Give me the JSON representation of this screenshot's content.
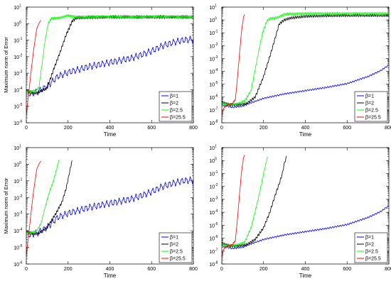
{
  "chart_data": [
    {
      "type": "line",
      "panel": "top-left",
      "xlabel": "Time",
      "ylabel": "Maximum norm of Error",
      "xlim": [
        0,
        800
      ],
      "ylim_log10": [
        -6,
        1
      ],
      "yscale": "log",
      "xticks": [
        0,
        200,
        400,
        600,
        800
      ],
      "yticks_exp": [
        -6,
        -5,
        -4,
        -3,
        -2,
        -1,
        0,
        1
      ],
      "legend_position": "bottom-right",
      "series": [
        {
          "name": "β=1",
          "color": "#0000ff",
          "osc_amp": 0.16,
          "osc_period": 20,
          "points": [
            [
              0,
              -4.1
            ],
            [
              15,
              -4.25
            ],
            [
              30,
              -4.2
            ],
            [
              50,
              -4.15
            ],
            [
              100,
              -3.8
            ],
            [
              150,
              -3.2
            ],
            [
              200,
              -2.95
            ],
            [
              300,
              -2.6
            ],
            [
              400,
              -2.35
            ],
            [
              500,
              -2.1
            ],
            [
              560,
              -1.85
            ],
            [
              610,
              -1.6
            ],
            [
              650,
              -1.35
            ],
            [
              700,
              -1.15
            ],
            [
              750,
              -1.0
            ],
            [
              790,
              -0.95
            ],
            [
              800,
              -0.95
            ]
          ]
        },
        {
          "name": "β=2",
          "color": "#000000",
          "osc_amp": 0.08,
          "osc_period": 8,
          "points": [
            [
              0,
              -4.05
            ],
            [
              25,
              -4.2
            ],
            [
              50,
              -4.2
            ],
            [
              100,
              -3.9
            ],
            [
              130,
              -2.8
            ],
            [
              160,
              -1.8
            ],
            [
              190,
              -0.7
            ],
            [
              220,
              0.15
            ],
            [
              240,
              0.35
            ],
            [
              300,
              0.38
            ],
            [
              400,
              0.4
            ],
            [
              800,
              0.4
            ]
          ]
        },
        {
          "name": "β=2.5",
          "color": "#00ff00",
          "osc_amp": 0.07,
          "osc_period": 7,
          "points": [
            [
              0,
              -4.1
            ],
            [
              20,
              -4.1
            ],
            [
              45,
              -4.05
            ],
            [
              60,
              -3.9
            ],
            [
              75,
              -2.5
            ],
            [
              90,
              -1.0
            ],
            [
              105,
              0.0
            ],
            [
              120,
              0.3
            ],
            [
              160,
              0.35
            ],
            [
              200,
              0.5
            ],
            [
              240,
              0.4
            ],
            [
              400,
              0.42
            ],
            [
              800,
              0.42
            ]
          ]
        },
        {
          "name": "β=25.5",
          "color": "#ff0000",
          "osc_amp": 0,
          "osc_period": 0,
          "points": [
            [
              0,
              -5.6
            ],
            [
              5,
              -4.9
            ],
            [
              12,
              -4.2
            ],
            [
              20,
              -3.2
            ],
            [
              35,
              -1.6
            ],
            [
              50,
              -0.3
            ],
            [
              62,
              0.05
            ],
            [
              70,
              0.2
            ]
          ]
        }
      ]
    },
    {
      "type": "line",
      "panel": "top-right",
      "xlabel": "Time",
      "ylabel": "",
      "xlim": [
        0,
        800
      ],
      "ylim_log10": [
        -8,
        1
      ],
      "yscale": "log",
      "xticks": [
        0,
        200,
        400,
        600,
        800
      ],
      "yticks_exp": [
        -8,
        -7,
        -6,
        -5,
        -4,
        -3,
        -2,
        -1,
        0,
        1
      ],
      "legend_position": "bottom-right",
      "series": [
        {
          "name": "β=1",
          "color": "#0000ff",
          "osc_amp": 0.05,
          "osc_period": 12,
          "points": [
            [
              0,
              -6.6
            ],
            [
              50,
              -6.8
            ],
            [
              100,
              -6.7
            ],
            [
              130,
              -6.5
            ],
            [
              200,
              -6.1
            ],
            [
              300,
              -5.75
            ],
            [
              400,
              -5.5
            ],
            [
              500,
              -5.25
            ],
            [
              600,
              -4.95
            ],
            [
              700,
              -4.4
            ],
            [
              760,
              -3.95
            ],
            [
              800,
              -3.5
            ]
          ]
        },
        {
          "name": "β=2",
          "color": "#000000",
          "osc_amp": 0.09,
          "osc_period": 9,
          "points": [
            [
              0,
              -6.4
            ],
            [
              40,
              -6.6
            ],
            [
              80,
              -6.6
            ],
            [
              120,
              -6.5
            ],
            [
              160,
              -6.0
            ],
            [
              200,
              -4.4
            ],
            [
              240,
              -2.3
            ],
            [
              275,
              -0.3
            ],
            [
              300,
              0.0
            ],
            [
              330,
              0.15
            ],
            [
              400,
              0.28
            ],
            [
              500,
              0.33
            ],
            [
              600,
              0.35
            ],
            [
              800,
              0.35
            ]
          ]
        },
        {
          "name": "β=2.5",
          "color": "#00ff00",
          "osc_amp": 0.09,
          "osc_period": 8,
          "points": [
            [
              0,
              -6.5
            ],
            [
              40,
              -6.6
            ],
            [
              80,
              -6.5
            ],
            [
              110,
              -6.3
            ],
            [
              140,
              -5.5
            ],
            [
              170,
              -3.0
            ],
            [
              195,
              -1.0
            ],
            [
              215,
              -0.1
            ],
            [
              230,
              0.1
            ],
            [
              270,
              0.2
            ],
            [
              300,
              0.45
            ],
            [
              400,
              0.5
            ],
            [
              800,
              0.5
            ]
          ]
        },
        {
          "name": "β=25.5",
          "color": "#ff0000",
          "osc_amp": 0.05,
          "osc_period": 6,
          "points": [
            [
              0,
              -7.5
            ],
            [
              10,
              -6.8
            ],
            [
              30,
              -6.6
            ],
            [
              50,
              -6.5
            ],
            [
              65,
              -6.2
            ],
            [
              75,
              -4.5
            ],
            [
              85,
              -2.6
            ],
            [
              95,
              -0.8
            ],
            [
              105,
              0.3
            ],
            [
              110,
              0.4
            ]
          ]
        }
      ]
    },
    {
      "type": "line",
      "panel": "bottom-left",
      "xlabel": "Time",
      "ylabel": "Maximum norm of Error",
      "xlim": [
        0,
        800
      ],
      "ylim_log10": [
        -6,
        1
      ],
      "yscale": "log",
      "xticks": [
        0,
        200,
        400,
        600,
        800
      ],
      "yticks_exp": [
        -6,
        -5,
        -4,
        -3,
        -2,
        -1,
        0,
        1
      ],
      "legend_position": "bottom-right",
      "series": [
        {
          "name": "β=1",
          "color": "#0000ff",
          "osc_amp": 0.16,
          "osc_period": 20,
          "points": [
            [
              0,
              -4.1
            ],
            [
              15,
              -4.25
            ],
            [
              30,
              -4.2
            ],
            [
              50,
              -4.15
            ],
            [
              100,
              -3.8
            ],
            [
              150,
              -3.2
            ],
            [
              200,
              -2.95
            ],
            [
              300,
              -2.6
            ],
            [
              400,
              -2.35
            ],
            [
              500,
              -2.1
            ],
            [
              560,
              -1.85
            ],
            [
              610,
              -1.6
            ],
            [
              650,
              -1.35
            ],
            [
              700,
              -1.15
            ],
            [
              750,
              -1.0
            ],
            [
              790,
              -0.95
            ],
            [
              800,
              -0.95
            ]
          ]
        },
        {
          "name": "β=2",
          "color": "#000000",
          "osc_amp": 0.07,
          "osc_period": 8,
          "points": [
            [
              0,
              -4.05
            ],
            [
              30,
              -4.2
            ],
            [
              60,
              -4.15
            ],
            [
              100,
              -3.8
            ],
            [
              140,
              -3.0
            ],
            [
              170,
              -2.3
            ],
            [
              190,
              -1.5
            ],
            [
              205,
              -0.6
            ],
            [
              215,
              0.0
            ],
            [
              220,
              0.2
            ]
          ]
        },
        {
          "name": "β=2.5",
          "color": "#00ff00",
          "osc_amp": 0.06,
          "osc_period": 7,
          "points": [
            [
              0,
              -4.1
            ],
            [
              25,
              -4.1
            ],
            [
              50,
              -4.0
            ],
            [
              70,
              -3.6
            ],
            [
              90,
              -2.6
            ],
            [
              110,
              -1.7
            ],
            [
              130,
              -1.0
            ],
            [
              145,
              -0.3
            ],
            [
              155,
              0.2
            ]
          ]
        },
        {
          "name": "β=25.5",
          "color": "#ff0000",
          "osc_amp": 0,
          "osc_period": 0,
          "points": [
            [
              0,
              -5.6
            ],
            [
              5,
              -4.9
            ],
            [
              12,
              -4.2
            ],
            [
              20,
              -3.2
            ],
            [
              35,
              -1.6
            ],
            [
              50,
              -0.3
            ],
            [
              62,
              0.05
            ],
            [
              70,
              0.2
            ]
          ]
        }
      ]
    },
    {
      "type": "line",
      "panel": "bottom-right",
      "xlabel": "Time",
      "ylabel": "",
      "xlim": [
        0,
        800
      ],
      "ylim_log10": [
        -8,
        1
      ],
      "yscale": "log",
      "xticks": [
        0,
        200,
        400,
        600,
        800
      ],
      "yticks_exp": [
        -8,
        -7,
        -6,
        -5,
        -4,
        -3,
        -2,
        -1,
        0,
        1
      ],
      "legend_position": "bottom-right",
      "series": [
        {
          "name": "β=1",
          "color": "#0000ff",
          "osc_amp": 0.05,
          "osc_period": 12,
          "points": [
            [
              0,
              -6.6
            ],
            [
              50,
              -6.8
            ],
            [
              100,
              -6.7
            ],
            [
              130,
              -6.5
            ],
            [
              200,
              -6.1
            ],
            [
              300,
              -5.75
            ],
            [
              400,
              -5.5
            ],
            [
              500,
              -5.25
            ],
            [
              600,
              -4.95
            ],
            [
              700,
              -4.4
            ],
            [
              760,
              -3.95
            ],
            [
              800,
              -3.5
            ]
          ]
        },
        {
          "name": "β=2",
          "color": "#000000",
          "osc_amp": 0.09,
          "osc_period": 9,
          "points": [
            [
              0,
              -6.4
            ],
            [
              40,
              -6.6
            ],
            [
              80,
              -6.6
            ],
            [
              120,
              -6.5
            ],
            [
              160,
              -6.1
            ],
            [
              200,
              -5.2
            ],
            [
              230,
              -4.0
            ],
            [
              255,
              -2.7
            ],
            [
              275,
              -1.8
            ],
            [
              290,
              -1.0
            ],
            [
              300,
              -0.2
            ],
            [
              310,
              0.3
            ]
          ]
        },
        {
          "name": "β=2.5",
          "color": "#00ff00",
          "osc_amp": 0.08,
          "osc_period": 8,
          "points": [
            [
              0,
              -6.5
            ],
            [
              40,
              -6.6
            ],
            [
              80,
              -6.5
            ],
            [
              110,
              -6.3
            ],
            [
              140,
              -5.2
            ],
            [
              165,
              -3.6
            ],
            [
              185,
              -2.2
            ],
            [
              200,
              -1.0
            ],
            [
              212,
              -0.2
            ],
            [
              220,
              0.3
            ]
          ]
        },
        {
          "name": "β=25.5",
          "color": "#ff0000",
          "osc_amp": 0.05,
          "osc_period": 6,
          "points": [
            [
              0,
              -7.5
            ],
            [
              10,
              -6.8
            ],
            [
              30,
              -6.6
            ],
            [
              50,
              -6.5
            ],
            [
              65,
              -6.2
            ],
            [
              75,
              -4.5
            ],
            [
              85,
              -2.6
            ],
            [
              95,
              -0.8
            ],
            [
              105,
              0.3
            ],
            [
              110,
              0.4
            ]
          ]
        }
      ]
    }
  ]
}
